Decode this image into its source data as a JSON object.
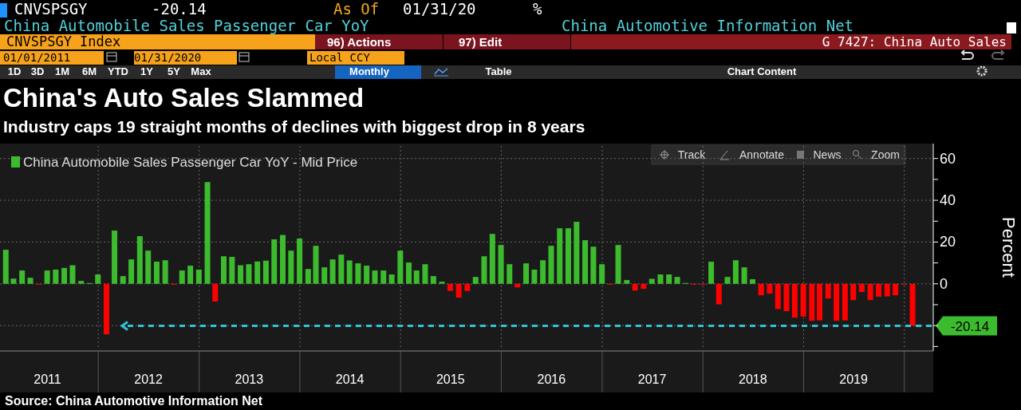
{
  "chart_data": {
    "type": "bar",
    "title": "China's Auto Sales Slammed",
    "subtitle": "Industry caps 19 straight months of declines with biggest drop in 8 years",
    "ylabel": "Percent",
    "annotations": [
      "CNVSPSGY",
      "-20.14",
      "As Of",
      "01/31/20",
      "%",
      "China Automobile Sales Passenger Car YoY",
      "China Automotive Information Net",
      "CNVSPSGY Index",
      "96) Actions",
      "97) Edit",
      "G 7427: China Auto Sales",
      "01/01/2011",
      "01/31/2020",
      "Local CCY",
      "1D",
      "3D",
      "1M",
      "6M",
      "YTD",
      "1Y",
      "5Y",
      "Max",
      "Monthly",
      "Table",
      "Chart Content",
      "Track",
      "Annotate",
      "News",
      "Zoom",
      "Source: China Automotive Information Net"
    ],
    "x": [
      "2011-01-31",
      "2011-02-28",
      "2011-03-31",
      "2011-04-30",
      "2011-05-31",
      "2011-06-30",
      "2011-07-31",
      "2011-08-31",
      "2011-09-30",
      "2011-10-31",
      "2011-11-30",
      "2011-12-31",
      "2012-01-31",
      "2012-02-29",
      "2012-03-31",
      "2012-04-30",
      "2012-05-31",
      "2012-06-30",
      "2012-07-31",
      "2012-08-31",
      "2012-09-30",
      "2012-10-31",
      "2012-11-30",
      "2012-12-31",
      "2013-01-31",
      "2013-02-28",
      "2013-03-31",
      "2013-04-30",
      "2013-05-31",
      "2013-06-30",
      "2013-07-31",
      "2013-08-31",
      "2013-09-30",
      "2013-10-31",
      "2013-11-30",
      "2013-12-31",
      "2014-01-31",
      "2014-02-28",
      "2014-03-31",
      "2014-04-30",
      "2014-05-31",
      "2014-06-30",
      "2014-07-31",
      "2014-08-31",
      "2014-09-30",
      "2014-10-31",
      "2014-11-30",
      "2014-12-31",
      "2015-01-31",
      "2015-02-28",
      "2015-03-31",
      "2015-04-30",
      "2015-05-31",
      "2015-06-30",
      "2015-07-31",
      "2015-08-31",
      "2015-09-30",
      "2015-10-31",
      "2015-11-30",
      "2015-12-31",
      "2016-01-31",
      "2016-02-29",
      "2016-03-31",
      "2016-04-30",
      "2016-05-31",
      "2016-06-30",
      "2016-07-31",
      "2016-08-31",
      "2016-09-30",
      "2016-10-31",
      "2016-11-30",
      "2016-12-31",
      "2017-01-31",
      "2017-02-28",
      "2017-03-31",
      "2017-04-30",
      "2017-05-31",
      "2017-06-30",
      "2017-07-31",
      "2017-08-31",
      "2017-09-30",
      "2017-10-31",
      "2017-11-30",
      "2017-12-31",
      "2018-01-31",
      "2018-02-28",
      "2018-03-31",
      "2018-04-30",
      "2018-05-31",
      "2018-06-30",
      "2018-07-31",
      "2018-08-31",
      "2018-09-30",
      "2018-10-31",
      "2018-11-30",
      "2018-12-31",
      "2019-01-31",
      "2019-02-28",
      "2019-03-31",
      "2019-04-30",
      "2019-05-31",
      "2019-06-30",
      "2019-07-31",
      "2019-08-31",
      "2019-09-30",
      "2019-10-31",
      "2019-11-30",
      "2019-12-31",
      "2020-01-31"
    ],
    "xlim": [
      "2011-01-10",
      "2020-04-15"
    ],
    "xticks": [
      {
        "value": "2011-07-01",
        "label": "2011"
      },
      {
        "value": "2012-01-01",
        "label": null
      },
      {
        "value": "2012-07-01",
        "label": "2012"
      },
      {
        "value": "2013-01-01",
        "label": null
      },
      {
        "value": "2013-07-01",
        "label": "2013"
      },
      {
        "value": "2014-01-01",
        "label": null
      },
      {
        "value": "2014-07-01",
        "label": "2014"
      },
      {
        "value": "2015-01-01",
        "label": null
      },
      {
        "value": "2015-07-01",
        "label": "2015"
      },
      {
        "value": "2016-01-01",
        "label": null
      },
      {
        "value": "2016-07-01",
        "label": "2016"
      },
      {
        "value": "2017-01-01",
        "label": null
      },
      {
        "value": "2017-07-01",
        "label": "2017"
      },
      {
        "value": "2018-01-01",
        "label": null
      },
      {
        "value": "2018-07-01",
        "label": "2018"
      },
      {
        "value": "2019-01-01",
        "label": null
      },
      {
        "value": "2019-07-01",
        "label": "2019"
      },
      {
        "value": "2020-01-01",
        "label": null
      }
    ],
    "ylim": [
      -31,
      66
    ],
    "yticks": [
      {
        "value": -30,
        "label": null
      },
      {
        "value": -20,
        "label": null
      },
      {
        "value": -10,
        "label": null
      },
      0,
      {
        "value": 10,
        "label": null
      },
      20,
      {
        "value": 30,
        "label": null
      },
      40,
      {
        "value": 50,
        "label": null
      },
      60
    ],
    "grid": true,
    "legend": "top left",
    "series": [
      {
        "name": "China Automobile Sales Passenger Car YoY - Mid Price",
        "color": "#3dbb2e",
        "values": [
          16.3,
          2.5,
          6.4,
          2.9,
          -0.3,
          6.4,
          6.8,
          7.6,
          8.9,
          1.4,
          0.4,
          4.5,
          -24.2,
          25.5,
          3.7,
          11.7,
          22.8,
          15.9,
          10.6,
          11.3,
          -0.3,
          6.4,
          8.7,
          6.8,
          48.7,
          -8.5,
          13.2,
          12.9,
          8.9,
          9.4,
          10.7,
          11.1,
          21.3,
          23.4,
          15.9,
          21.7,
          7.1,
          18.2,
          7.9,
          11.7,
          14.0,
          11.2,
          9.8,
          8.7,
          6.4,
          6.4,
          4.5,
          15.9,
          10.2,
          6.4,
          9.4,
          3.7,
          1.0,
          -3.4,
          -6.6,
          -3.4,
          3.3,
          13.2,
          23.9,
          18.6,
          9.4,
          -1.7,
          9.8,
          6.8,
          11.3,
          18.2,
          26.6,
          26.6,
          29.7,
          20.9,
          17.8,
          9.4,
          -0.3,
          18.6,
          1.8,
          -3.2,
          -2.4,
          2.4,
          4.5,
          4.5,
          3.3,
          0.4,
          -0.3,
          -0.3,
          10.6,
          -9.8,
          3.3,
          11.3,
          7.9,
          2.2,
          -5.5,
          -4.7,
          -12.1,
          -13.1,
          -16.2,
          -15.7,
          -17.7,
          -17.5,
          -7.0,
          -17.7,
          -17.5,
          -7.8,
          -3.9,
          -7.8,
          -6.2,
          -6.0,
          -5.5,
          -0.3,
          -20.14
        ],
        "colors": [
          "#3dbb2e",
          "#3dbb2e",
          "#3dbb2e",
          "#3dbb2e",
          "#ff0000",
          "#3dbb2e",
          "#3dbb2e",
          "#3dbb2e",
          "#3dbb2e",
          "#3dbb2e",
          "#3dbb2e",
          "#3dbb2e",
          "#ff0000",
          "#3dbb2e",
          "#3dbb2e",
          "#3dbb2e",
          "#3dbb2e",
          "#3dbb2e",
          "#3dbb2e",
          "#3dbb2e",
          "#ff0000",
          "#3dbb2e",
          "#3dbb2e",
          "#3dbb2e",
          "#3dbb2e",
          "#ff0000",
          "#3dbb2e",
          "#3dbb2e",
          "#3dbb2e",
          "#3dbb2e",
          "#3dbb2e",
          "#3dbb2e",
          "#3dbb2e",
          "#3dbb2e",
          "#3dbb2e",
          "#3dbb2e",
          "#3dbb2e",
          "#3dbb2e",
          "#3dbb2e",
          "#3dbb2e",
          "#3dbb2e",
          "#3dbb2e",
          "#3dbb2e",
          "#3dbb2e",
          "#3dbb2e",
          "#3dbb2e",
          "#3dbb2e",
          "#3dbb2e",
          "#3dbb2e",
          "#3dbb2e",
          "#3dbb2e",
          "#3dbb2e",
          "#3dbb2e",
          "#ff0000",
          "#ff0000",
          "#ff0000",
          "#3dbb2e",
          "#3dbb2e",
          "#3dbb2e",
          "#3dbb2e",
          "#3dbb2e",
          "#ff0000",
          "#3dbb2e",
          "#3dbb2e",
          "#3dbb2e",
          "#3dbb2e",
          "#3dbb2e",
          "#3dbb2e",
          "#3dbb2e",
          "#3dbb2e",
          "#3dbb2e",
          "#3dbb2e",
          "#ff0000",
          "#3dbb2e",
          "#3dbb2e",
          "#ff0000",
          "#ff0000",
          "#3dbb2e",
          "#3dbb2e",
          "#3dbb2e",
          "#3dbb2e",
          "#3dbb2e",
          "#ff0000",
          "#ff0000",
          "#3dbb2e",
          "#ff0000",
          "#3dbb2e",
          "#3dbb2e",
          "#3dbb2e",
          "#3dbb2e",
          "#ff0000",
          "#ff0000",
          "#ff0000",
          "#ff0000",
          "#ff0000",
          "#ff0000",
          "#ff0000",
          "#ff0000",
          "#ff0000",
          "#ff0000",
          "#ff0000",
          "#ff0000",
          "#ff0000",
          "#ff0000",
          "#ff0000",
          "#ff0000",
          "#ff0000",
          "#ff0000",
          "#ff0000"
        ]
      }
    ],
    "ref_lines": [
      {
        "axis": "y",
        "value": -20.14,
        "label": "-20.14",
        "color": "#2ec4d6",
        "line_style": "dashed"
      }
    ]
  }
}
